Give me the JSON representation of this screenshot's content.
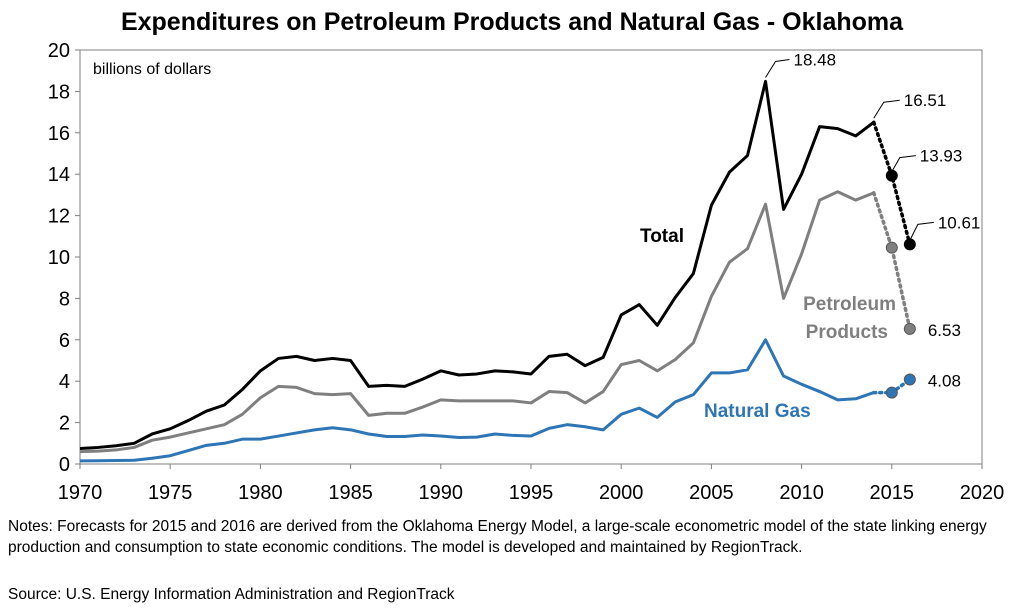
{
  "chart_data": {
    "type": "line",
    "title": "Expenditures on Petroleum Products and Natural Gas - Oklahoma",
    "unit_label": "billions of dollars",
    "xlim": [
      1970,
      2020
    ],
    "ylim": [
      0,
      20
    ],
    "x_ticks": [
      "1970",
      "1975",
      "1980",
      "1985",
      "1990",
      "1995",
      "2000",
      "2005",
      "2010",
      "2015",
      "2020"
    ],
    "y_ticks": [
      "0",
      "2",
      "4",
      "6",
      "8",
      "10",
      "12",
      "14",
      "16",
      "18",
      "20"
    ],
    "grid": false,
    "colors": {
      "total": "#000000",
      "petroleum": "#7f7f7f",
      "gas": "#2e75b6"
    },
    "series": [
      {
        "name": "Total",
        "color": "#000000",
        "x": [
          1970,
          1971,
          1972,
          1973,
          1974,
          1975,
          1976,
          1977,
          1978,
          1979,
          1980,
          1981,
          1982,
          1983,
          1984,
          1985,
          1986,
          1987,
          1988,
          1989,
          1990,
          1991,
          1992,
          1993,
          1994,
          1995,
          1996,
          1997,
          1998,
          1999,
          2000,
          2001,
          2002,
          2003,
          2004,
          2005,
          2006,
          2007,
          2008,
          2009,
          2010,
          2011,
          2012,
          2013,
          2014
        ],
        "values": [
          0.75,
          0.8,
          0.88,
          1.0,
          1.45,
          1.7,
          2.1,
          2.55,
          2.85,
          3.6,
          4.5,
          5.1,
          5.2,
          5.0,
          5.1,
          5.0,
          3.75,
          3.8,
          3.75,
          4.1,
          4.5,
          4.3,
          4.35,
          4.5,
          4.45,
          4.35,
          5.2,
          5.3,
          4.75,
          5.15,
          7.2,
          7.7,
          6.7,
          8.05,
          9.2,
          12.5,
          14.1,
          14.9,
          18.48,
          12.3,
          14.0,
          16.3,
          16.2,
          15.85,
          16.51
        ],
        "forecast": {
          "x": [
            2015,
            2016
          ],
          "values": [
            13.93,
            10.61
          ]
        }
      },
      {
        "name": "Petroleum Products",
        "color": "#7f7f7f",
        "x": [
          1970,
          1971,
          1972,
          1973,
          1974,
          1975,
          1976,
          1977,
          1978,
          1979,
          1980,
          1981,
          1982,
          1983,
          1984,
          1985,
          1986,
          1987,
          1988,
          1989,
          1990,
          1991,
          1992,
          1993,
          1994,
          1995,
          1996,
          1997,
          1998,
          1999,
          2000,
          2001,
          2002,
          2003,
          2004,
          2005,
          2006,
          2007,
          2008,
          2009,
          2010,
          2011,
          2012,
          2013,
          2014
        ],
        "values": [
          0.6,
          0.62,
          0.68,
          0.8,
          1.15,
          1.3,
          1.5,
          1.7,
          1.9,
          2.4,
          3.2,
          3.75,
          3.7,
          3.4,
          3.35,
          3.4,
          2.35,
          2.45,
          2.45,
          2.75,
          3.1,
          3.05,
          3.05,
          3.05,
          3.05,
          2.95,
          3.5,
          3.45,
          2.95,
          3.5,
          4.8,
          5.0,
          4.5,
          5.05,
          5.85,
          8.1,
          9.75,
          10.4,
          12.55,
          8.0,
          10.15,
          12.75,
          13.15,
          12.75,
          13.1
        ],
        "forecast": {
          "x": [
            2015,
            2016
          ],
          "values": [
            10.45,
            6.53
          ]
        }
      },
      {
        "name": "Natural Gas",
        "color": "#2e75b6",
        "x": [
          1970,
          1971,
          1972,
          1973,
          1974,
          1975,
          1976,
          1977,
          1978,
          1979,
          1980,
          1981,
          1982,
          1983,
          1984,
          1985,
          1986,
          1987,
          1988,
          1989,
          1990,
          1991,
          1992,
          1993,
          1994,
          1995,
          1996,
          1997,
          1998,
          1999,
          2000,
          2001,
          2002,
          2003,
          2004,
          2005,
          2006,
          2007,
          2008,
          2009,
          2010,
          2011,
          2012,
          2013,
          2014
        ],
        "values": [
          0.15,
          0.16,
          0.17,
          0.18,
          0.28,
          0.4,
          0.65,
          0.9,
          1.0,
          1.2,
          1.2,
          1.35,
          1.5,
          1.65,
          1.75,
          1.65,
          1.45,
          1.33,
          1.33,
          1.4,
          1.35,
          1.28,
          1.3,
          1.45,
          1.38,
          1.35,
          1.72,
          1.9,
          1.8,
          1.65,
          2.4,
          2.7,
          2.25,
          3.0,
          3.35,
          4.4,
          4.4,
          4.55,
          6.0,
          4.25,
          3.85,
          3.5,
          3.1,
          3.15,
          3.45
        ],
        "forecast": {
          "x": [
            2015,
            2016
          ],
          "values": [
            3.45,
            4.08
          ]
        }
      }
    ],
    "annotations": [
      {
        "text": "18.48",
        "x": 2008,
        "y": 18.48,
        "series": "Total"
      },
      {
        "text": "16.51",
        "x": 2014,
        "y": 16.51,
        "series": "Total"
      },
      {
        "text": "13.93",
        "x": 2015,
        "y": 13.93,
        "series": "Total"
      },
      {
        "text": "10.61",
        "x": 2016,
        "y": 10.61,
        "series": "Total"
      },
      {
        "text": "6.53",
        "x": 2016,
        "y": 6.53,
        "series": "Petroleum Products"
      },
      {
        "text": "4.08",
        "x": 2016,
        "y": 4.08,
        "series": "Natural Gas"
      }
    ],
    "series_labels": [
      {
        "text": "Total",
        "color": "#000000"
      },
      {
        "text": "Petroleum",
        "color": "#7f7f7f"
      },
      {
        "text": "Products",
        "color": "#7f7f7f"
      },
      {
        "text": "Natural Gas",
        "color": "#2e75b6"
      }
    ]
  },
  "notes": "Notes: Forecasts for 2015 and 2016 are derived from the Oklahoma Energy Model, a large-scale econometric model of the state linking energy production and consumption to state economic conditions. The model is developed and maintained by RegionTrack.",
  "source": "Source: U.S. Energy Information Administration and RegionTrack"
}
